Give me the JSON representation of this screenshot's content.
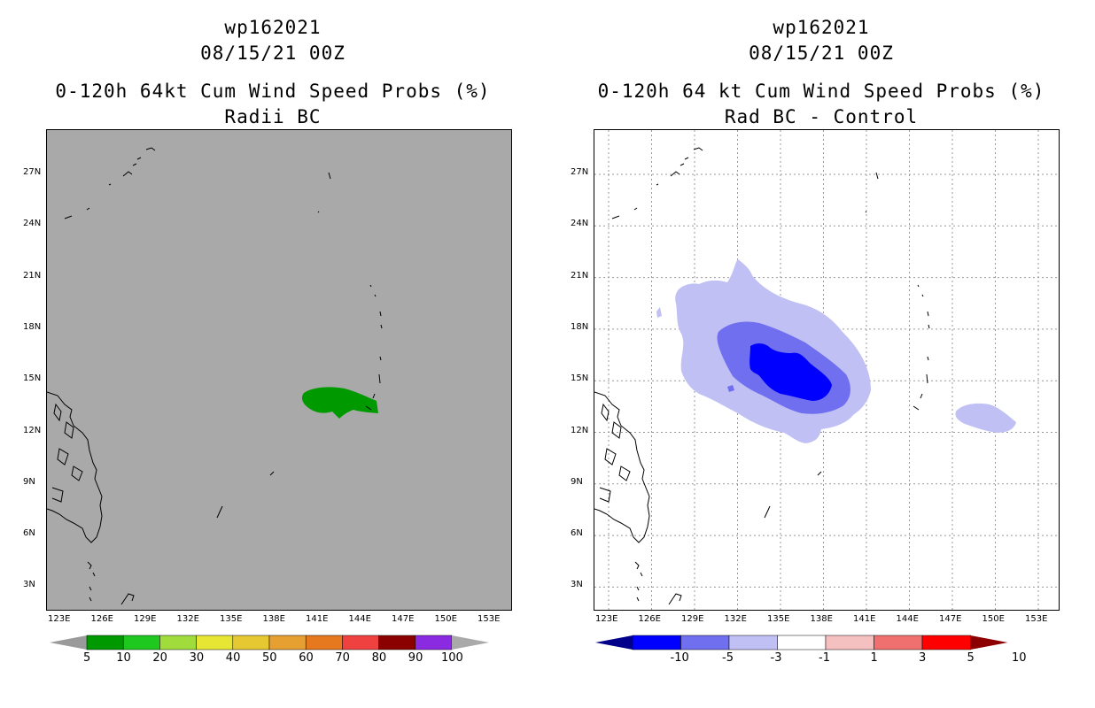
{
  "left": {
    "title_line1": "wp162021",
    "title_line2": "08/15/21 00Z",
    "title_line3": "0-120h 64kt Cum Wind Speed Probs (%)",
    "title_line4": "Radii BC",
    "colorbar": {
      "labels": [
        "5",
        "10",
        "20",
        "30",
        "40",
        "50",
        "60",
        "70",
        "80",
        "90",
        "100"
      ],
      "colors": [
        "#9a9a9a",
        "#009900",
        "#1ec81e",
        "#a0dc3c",
        "#e6e633",
        "#e6c832",
        "#e6a032",
        "#e6781e",
        "#f04141",
        "#8b0000",
        "#8a2be2",
        "#a9a9a9"
      ]
    }
  },
  "right": {
    "title_line1": "wp162021",
    "title_line2": "08/15/21 00Z",
    "title_line3": "0-120h 64 kt Cum Wind Speed Probs (%)",
    "title_line4": "Rad BC - Control",
    "colorbar": {
      "labels": [
        "-10",
        "-5",
        "-3",
        "-1",
        "1",
        "3",
        "5",
        "10"
      ],
      "colors": [
        "#00008b",
        "#0000ff",
        "#6f6ff0",
        "#c0c0f5",
        "#ffffff",
        "#f5c0c0",
        "#f07070",
        "#ff0000",
        "#8b0000"
      ]
    }
  },
  "axes": {
    "lon_labels": [
      "123E",
      "126E",
      "129E",
      "132E",
      "135E",
      "138E",
      "141E",
      "144E",
      "147E",
      "150E",
      "153E"
    ],
    "lat_labels": [
      "27N",
      "24N",
      "21N",
      "18N",
      "15N",
      "12N",
      "9N",
      "6N",
      "3N"
    ]
  }
}
